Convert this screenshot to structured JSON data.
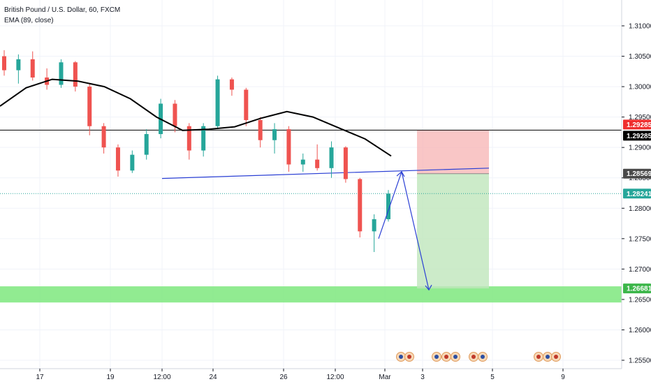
{
  "legend": {
    "symbol": "British Pound / U.S. Dollar, 60, FXCM",
    "indicator": "EMA (89, close)"
  },
  "colors": {
    "up": "#26a69a",
    "down": "#ef5350",
    "ema": "#000000",
    "trendline": "#2a3fd4",
    "stop_zone": "#f7b3b3",
    "target_zone": "#bfe6bc",
    "support_zone": "#7ee87e",
    "resistance_line": "#000000",
    "current_price": "#26a69a",
    "stop_tag": "#ef2f2f",
    "entry_tag": "#4a4a4a"
  },
  "chart_data": {
    "type": "candlestick",
    "title": "British Pound / U.S. Dollar, 60, FXCM",
    "y_axis": {
      "side": "right",
      "range": [
        1.2535,
        1.3125
      ],
      "ticks": [
        "1.31000",
        "1.30500",
        "1.30000",
        "1.29500",
        "1.29000",
        "1.28500",
        "1.28000",
        "1.27500",
        "1.27000",
        "1.26500",
        "1.26000",
        "1.25500"
      ]
    },
    "x_axis": {
      "ticks": [
        "17",
        "19",
        "12:00",
        "24",
        "26",
        "12:00",
        "Mar",
        "3",
        "5",
        "9"
      ]
    },
    "price_levels": [
      {
        "name": "resistance",
        "value": 1.29285,
        "label": "1.29285"
      },
      {
        "name": "stop",
        "value": 1.29285,
        "label": "1.29285"
      },
      {
        "name": "entry",
        "value": 1.28569,
        "label": "1.28569"
      },
      {
        "name": "current",
        "value": 1.28241,
        "label": "1.28241"
      },
      {
        "name": "target",
        "value": 1.26681,
        "label": "1.26681"
      }
    ],
    "support_zone": [
      1.2645,
      1.2667
    ],
    "ema_series": {
      "name": "EMA (89, close)",
      "points": [
        [
          "17",
          1.2968
        ],
        [
          "",
          1.2998
        ],
        [
          "",
          1.3012
        ],
        [
          "",
          1.3009
        ],
        [
          "19",
          1.3
        ],
        [
          "",
          1.298
        ],
        [
          "12:00",
          1.295
        ],
        [
          "",
          1.2928
        ],
        [
          "24",
          1.293
        ],
        [
          "",
          1.2934
        ],
        [
          "",
          1.2948
        ],
        [
          "26",
          1.2959
        ],
        [
          "",
          1.295
        ],
        [
          "",
          1.2932
        ],
        [
          "12:00",
          1.2914
        ],
        [
          "",
          1.2886
        ]
      ]
    },
    "ohlc_sample": [
      {
        "t": "17",
        "o": 1.305,
        "h": 1.306,
        "l": 1.3018,
        "c": 1.3027
      },
      {
        "t": "",
        "o": 1.3027,
        "h": 1.3053,
        "l": 1.3005,
        "c": 1.3045
      },
      {
        "t": "",
        "o": 1.3045,
        "h": 1.3058,
        "l": 1.301,
        "c": 1.3015
      },
      {
        "t": "",
        "o": 1.3015,
        "h": 1.303,
        "l": 1.2995,
        "c": 1.3003
      },
      {
        "t": "19",
        "o": 1.3003,
        "h": 1.3045,
        "l": 1.2998,
        "c": 1.304
      },
      {
        "t": "",
        "o": 1.304,
        "h": 1.3042,
        "l": 1.2992,
        "c": 1.3
      },
      {
        "t": "",
        "o": 1.3,
        "h": 1.3005,
        "l": 1.292,
        "c": 1.2935
      },
      {
        "t": "",
        "o": 1.2935,
        "h": 1.294,
        "l": 1.289,
        "c": 1.29
      },
      {
        "t": "12:00",
        "o": 1.29,
        "h": 1.2905,
        "l": 1.2852,
        "c": 1.2862
      },
      {
        "t": "",
        "o": 1.2862,
        "h": 1.2895,
        "l": 1.2858,
        "c": 1.2888
      },
      {
        "t": "",
        "o": 1.2888,
        "h": 1.293,
        "l": 1.288,
        "c": 1.2922
      },
      {
        "t": "24",
        "o": 1.2922,
        "h": 1.298,
        "l": 1.2915,
        "c": 1.2972
      },
      {
        "t": "",
        "o": 1.2972,
        "h": 1.2978,
        "l": 1.2925,
        "c": 1.2935
      },
      {
        "t": "",
        "o": 1.2935,
        "h": 1.294,
        "l": 1.288,
        "c": 1.2895
      },
      {
        "t": "",
        "o": 1.2895,
        "h": 1.294,
        "l": 1.2885,
        "c": 1.2935
      },
      {
        "t": "26",
        "o": 1.2935,
        "h": 1.3018,
        "l": 1.293,
        "c": 1.3012
      },
      {
        "t": "",
        "o": 1.3012,
        "h": 1.3015,
        "l": 1.2985,
        "c": 1.2995
      },
      {
        "t": "",
        "o": 1.2995,
        "h": 1.2998,
        "l": 1.2935,
        "c": 1.2945
      },
      {
        "t": "",
        "o": 1.2945,
        "h": 1.295,
        "l": 1.29,
        "c": 1.2912
      },
      {
        "t": "",
        "o": 1.2912,
        "h": 1.294,
        "l": 1.289,
        "c": 1.293
      },
      {
        "t": "12:00",
        "o": 1.293,
        "h": 1.2935,
        "l": 1.286,
        "c": 1.2872
      },
      {
        "t": "",
        "o": 1.2872,
        "h": 1.289,
        "l": 1.286,
        "c": 1.288
      },
      {
        "t": "",
        "o": 1.288,
        "h": 1.2905,
        "l": 1.2862,
        "c": 1.2866
      },
      {
        "t": "",
        "o": 1.2866,
        "h": 1.291,
        "l": 1.285,
        "c": 1.29
      },
      {
        "t": "",
        "o": 1.29,
        "h": 1.2902,
        "l": 1.2842,
        "c": 1.2848
      },
      {
        "t": "",
        "o": 1.2848,
        "h": 1.285,
        "l": 1.2752,
        "c": 1.2762
      },
      {
        "t": "",
        "o": 1.2762,
        "h": 1.279,
        "l": 1.2728,
        "c": 1.2782
      },
      {
        "t": "Mar",
        "o": 1.2782,
        "h": 1.283,
        "l": 1.2778,
        "c": 1.2824
      }
    ]
  }
}
